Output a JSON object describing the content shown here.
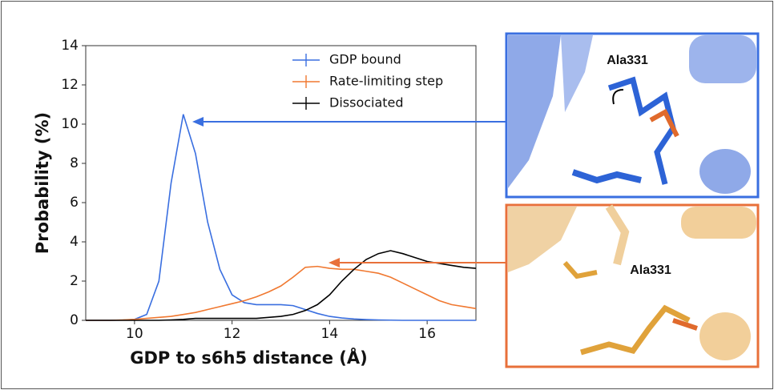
{
  "chart_data": {
    "type": "line",
    "xlabel": "GDP to s6h5 distance (Å)",
    "ylabel": "Probability (%)",
    "x": [
      9,
      9.25,
      9.5,
      9.75,
      10,
      10.25,
      10.5,
      10.75,
      11,
      11.25,
      11.5,
      11.75,
      12,
      12.25,
      12.5,
      12.75,
      13,
      13.25,
      13.5,
      13.75,
      14,
      14.25,
      14.5,
      14.75,
      15,
      15.25,
      15.5,
      15.75,
      16,
      16.25,
      16.5,
      16.75,
      17
    ],
    "series": [
      {
        "name": "GDP bound",
        "color": "#3a6fe0",
        "values": [
          0,
          0,
          0,
          0.01,
          0.05,
          0.3,
          2.0,
          7.0,
          10.5,
          8.5,
          5.0,
          2.6,
          1.3,
          0.9,
          0.8,
          0.8,
          0.8,
          0.75,
          0.55,
          0.35,
          0.2,
          0.12,
          0.07,
          0.04,
          0.02,
          0.01,
          0,
          0,
          0,
          0,
          0,
          0,
          0
        ]
      },
      {
        "name": "Rate-limiting step",
        "color": "#f07830",
        "values": [
          0,
          0,
          0,
          0.02,
          0.05,
          0.1,
          0.15,
          0.2,
          0.3,
          0.4,
          0.55,
          0.7,
          0.85,
          1.0,
          1.2,
          1.45,
          1.75,
          2.2,
          2.7,
          2.75,
          2.65,
          2.6,
          2.6,
          2.5,
          2.4,
          2.2,
          1.9,
          1.6,
          1.3,
          1.0,
          0.8,
          0.7,
          0.6
        ]
      },
      {
        "name": "Dissociated",
        "color": "#000000",
        "values": [
          0,
          0,
          0,
          0,
          0,
          0,
          0,
          0.02,
          0.05,
          0.1,
          0.1,
          0.1,
          0.1,
          0.1,
          0.1,
          0.15,
          0.2,
          0.3,
          0.5,
          0.8,
          1.3,
          2.0,
          2.6,
          3.1,
          3.4,
          3.55,
          3.4,
          3.2,
          3.0,
          2.9,
          2.8,
          2.7,
          2.65
        ]
      }
    ],
    "xlim": [
      9,
      17
    ],
    "xticks": [
      10,
      12,
      14,
      16
    ],
    "ylim": [
      0,
      14
    ],
    "yticks": [
      0,
      2,
      4,
      6,
      8,
      10,
      12,
      14
    ],
    "legend": "upper right"
  },
  "panels": [
    {
      "label": "Ala331"
    },
    {
      "label": "Ala331"
    }
  ]
}
